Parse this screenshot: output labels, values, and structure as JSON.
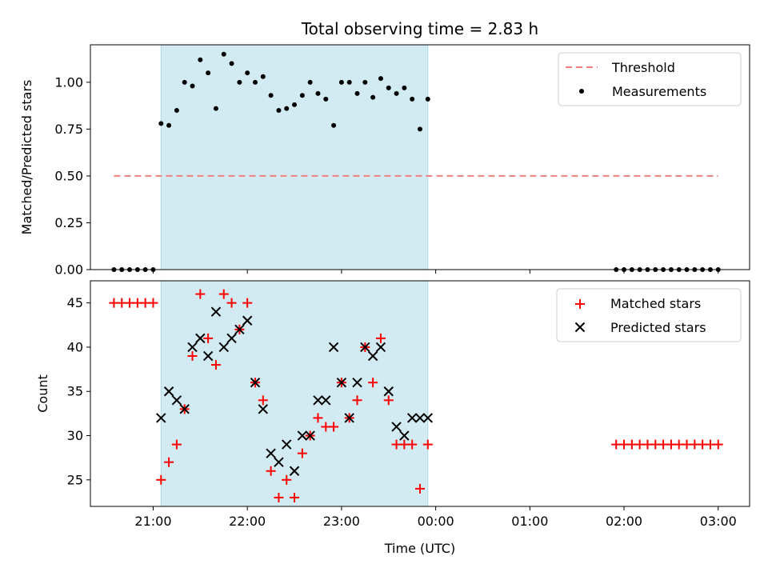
{
  "chart_data": [
    {
      "type": "scatter",
      "title": "Total observing time = 2.83 h",
      "xlabel": "",
      "ylabel": "Matched/Predicted stars",
      "x_axis": "time",
      "xlim": [
        "20:20",
        "03:20"
      ],
      "ylim": [
        0,
        1.2
      ],
      "yticks": [
        0,
        0.25,
        0.5,
        0.75,
        1.0
      ],
      "ytick_labels": [
        "0.00",
        "0.25",
        "0.50",
        "0.75",
        "1.00"
      ],
      "shaded_interval": [
        "21:05",
        "23:55"
      ],
      "colors": {
        "shade": "#add8e6",
        "threshold": "#f08080",
        "points": "#000000"
      },
      "threshold": {
        "name": "Threshold",
        "y": 0.5,
        "x_range": [
          "20:35",
          "03:00"
        ]
      },
      "series": [
        {
          "name": "Measurements",
          "x": [
            "20:35",
            "20:40",
            "20:45",
            "20:50",
            "20:55",
            "21:00",
            "21:05",
            "21:10",
            "21:15",
            "21:20",
            "21:25",
            "21:30",
            "21:35",
            "21:40",
            "21:45",
            "21:50",
            "21:55",
            "22:00",
            "22:05",
            "22:10",
            "22:15",
            "22:20",
            "22:25",
            "22:30",
            "22:35",
            "22:40",
            "22:45",
            "22:50",
            "22:55",
            "23:00",
            "23:05",
            "23:10",
            "23:15",
            "23:20",
            "23:25",
            "23:30",
            "23:35",
            "23:40",
            "23:45",
            "23:50",
            "23:55",
            "01:55",
            "02:00",
            "02:05",
            "02:10",
            "02:15",
            "02:20",
            "02:25",
            "02:30",
            "02:35",
            "02:40",
            "02:45",
            "02:50",
            "02:55",
            "03:00"
          ],
          "y": [
            0,
            0,
            0,
            0,
            0,
            0,
            0.78,
            0.77,
            0.85,
            1.0,
            0.98,
            1.12,
            1.05,
            0.86,
            1.15,
            1.1,
            1.0,
            1.05,
            1.0,
            1.03,
            0.93,
            0.85,
            0.86,
            0.88,
            0.93,
            1.0,
            0.94,
            0.91,
            0.77,
            1.0,
            1.0,
            0.94,
            1.0,
            0.92,
            1.02,
            0.97,
            0.94,
            0.97,
            0.91,
            0.75,
            0.91,
            0,
            0,
            0,
            0,
            0,
            0,
            0,
            0,
            0,
            0,
            0,
            0,
            0,
            0
          ]
        }
      ]
    },
    {
      "type": "scatter",
      "title": "",
      "xlabel": "Time (UTC)",
      "ylabel": "Count",
      "x_axis": "time",
      "xlim": [
        "20:20",
        "03:20"
      ],
      "ylim": [
        22,
        47.5
      ],
      "yticks": [
        25,
        30,
        35,
        40,
        45
      ],
      "xticks": [
        "21:00",
        "22:00",
        "23:00",
        "00:00",
        "01:00",
        "02:00",
        "03:00"
      ],
      "shaded_interval": [
        "21:05",
        "23:55"
      ],
      "colors": {
        "shade": "#add8e6",
        "matched": "#ff0000",
        "predicted": "#000000"
      },
      "series": [
        {
          "name": "Matched stars",
          "marker": "plus",
          "x": [
            "20:35",
            "20:40",
            "20:45",
            "20:50",
            "20:55",
            "21:00",
            "21:05",
            "21:10",
            "21:15",
            "21:20",
            "21:25",
            "21:30",
            "21:35",
            "21:40",
            "21:45",
            "21:50",
            "21:55",
            "22:00",
            "22:05",
            "22:10",
            "22:15",
            "22:20",
            "22:25",
            "22:30",
            "22:35",
            "22:40",
            "22:45",
            "22:50",
            "22:55",
            "23:00",
            "23:05",
            "23:10",
            "23:15",
            "23:20",
            "23:25",
            "23:30",
            "23:35",
            "23:40",
            "23:45",
            "23:50",
            "23:55",
            "01:55",
            "02:00",
            "02:05",
            "02:10",
            "02:15",
            "02:20",
            "02:25",
            "02:30",
            "02:35",
            "02:40",
            "02:45",
            "02:50",
            "02:55",
            "03:00"
          ],
          "y": [
            45,
            45,
            45,
            45,
            45,
            45,
            25,
            27,
            29,
            33,
            39,
            46,
            41,
            38,
            46,
            45,
            42,
            45,
            36,
            34,
            26,
            23,
            25,
            23,
            28,
            30,
            32,
            31,
            31,
            36,
            32,
            34,
            40,
            36,
            41,
            34,
            29,
            29,
            29,
            24,
            29,
            29,
            29,
            29,
            29,
            29,
            29,
            29,
            29,
            29,
            29,
            29,
            29,
            29,
            29
          ]
        },
        {
          "name": "Predicted stars",
          "marker": "x",
          "x": [
            "21:05",
            "21:10",
            "21:15",
            "21:20",
            "21:25",
            "21:30",
            "21:35",
            "21:40",
            "21:45",
            "21:50",
            "21:55",
            "22:00",
            "22:05",
            "22:10",
            "22:15",
            "22:20",
            "22:25",
            "22:30",
            "22:35",
            "22:40",
            "22:45",
            "22:50",
            "22:55",
            "23:00",
            "23:05",
            "23:10",
            "23:15",
            "23:20",
            "23:25",
            "23:30",
            "23:35",
            "23:40",
            "23:45",
            "23:50",
            "23:55"
          ],
          "y": [
            32,
            35,
            34,
            33,
            40,
            41,
            39,
            44,
            40,
            41,
            42,
            43,
            36,
            33,
            28,
            27,
            29,
            26,
            30,
            30,
            34,
            34,
            40,
            36,
            32,
            36,
            40,
            39,
            40,
            35,
            31,
            30,
            32,
            32,
            32
          ]
        }
      ]
    }
  ]
}
